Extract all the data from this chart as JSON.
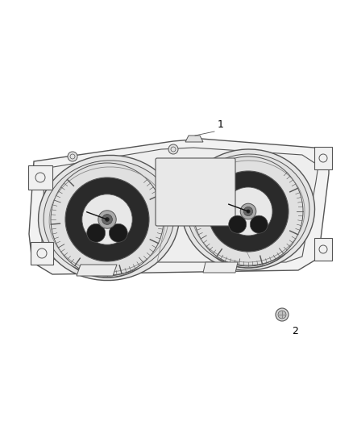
{
  "background_color": "#ffffff",
  "line_color": "#555555",
  "label_color": "#000000",
  "figure_width": 4.38,
  "figure_height": 5.33,
  "dpi": 100,
  "label1_text": "1",
  "label2_text": "2"
}
